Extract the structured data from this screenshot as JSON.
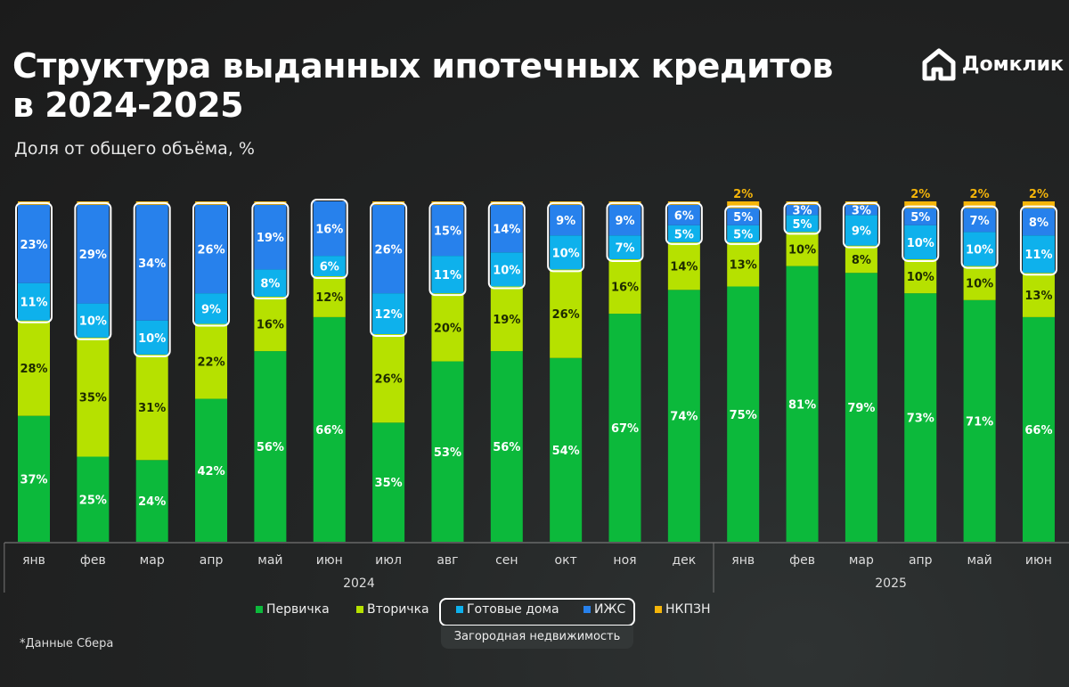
{
  "title_line1": "Структура выданных ипотечных кредитов",
  "title_line2": "в 2024-2025",
  "subtitle": "Доля от общего объёма, %",
  "logo_text": "Домклик",
  "footnote": "*Данные Сбера",
  "legend_group_label": "Загородная недвижимость",
  "chart_data": {
    "type": "bar",
    "stacked": true,
    "title": "Структура выданных ипотечных кредитов в 2024-2025",
    "ylabel": "Доля от общего объёма, %",
    "ylim": [
      0,
      100
    ],
    "grid": false,
    "legend_position": "bottom",
    "categories": [
      "янв",
      "фев",
      "мар",
      "апр",
      "май",
      "июн",
      "июл",
      "авг",
      "сен",
      "окт",
      "ноя",
      "дек",
      "янв",
      "фев",
      "мар",
      "апр",
      "май",
      "июн"
    ],
    "years": [
      {
        "label": "2024",
        "count": 12
      },
      {
        "label": "2025",
        "count": 6
      }
    ],
    "series": [
      {
        "name": "Первичка",
        "color": "#0cb93b",
        "values": [
          37,
          25,
          24,
          42,
          56,
          66,
          35,
          53,
          56,
          54,
          67,
          74,
          75,
          81,
          79,
          73,
          71,
          66
        ]
      },
      {
        "name": "Вторичка",
        "color": "#b6e100",
        "values": [
          28,
          35,
          31,
          22,
          16,
          12,
          26,
          20,
          19,
          26,
          16,
          14,
          13,
          10,
          8,
          10,
          10,
          13
        ]
      },
      {
        "name": "Готовые дома",
        "color": "#0eb1ec",
        "values": [
          11,
          10,
          10,
          9,
          8,
          6,
          12,
          11,
          10,
          10,
          7,
          5,
          5,
          5,
          9,
          10,
          10,
          11
        ]
      },
      {
        "name": "ИЖС",
        "color": "#2781ec",
        "values": [
          23,
          29,
          34,
          26,
          19,
          16,
          26,
          15,
          14,
          9,
          9,
          6,
          5,
          3,
          3,
          5,
          7,
          8
        ]
      },
      {
        "name": "НКПЗН",
        "color": "#f5b50a",
        "values": [
          1,
          1,
          1,
          1,
          1,
          0,
          1,
          1,
          1,
          1,
          1,
          1,
          2,
          1,
          1,
          2,
          2,
          2
        ]
      }
    ],
    "shown_labels_nkpzn_min": 2
  }
}
